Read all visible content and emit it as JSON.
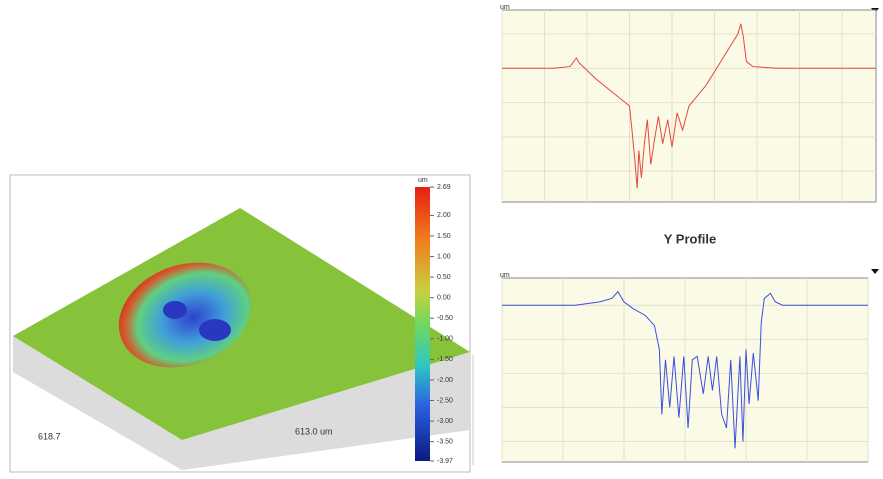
{
  "chart_data": [
    {
      "type": "surface",
      "length_label": "618.7",
      "width_label": "613.0 um",
      "colorbar_unit": "um",
      "clim": [
        -3.97,
        2.69
      ],
      "colorbar_ticks": [
        2.69,
        {
          "value": 2,
          "label": "2.00"
        },
        {
          "value": 1.5,
          "label": "1.50"
        },
        {
          "value": 1,
          "label": "1.00"
        },
        {
          "value": 0.5,
          "label": "0.50"
        },
        {
          "value": 0,
          "label": "0.00"
        },
        {
          "value": -0.5,
          "label": "-0.50"
        },
        {
          "value": -1,
          "label": "-1.00"
        },
        {
          "value": -1.5,
          "label": "-1.50"
        },
        {
          "value": -2,
          "label": "-2.00"
        },
        {
          "value": -2.5,
          "label": "-2.50"
        },
        {
          "value": -3,
          "label": "-3.00"
        },
        {
          "value": -3.5,
          "label": "-3.50"
        },
        -3.97
      ]
    },
    {
      "type": "line",
      "y_label": "um",
      "color": "#e8473c",
      "x": [
        0,
        60,
        120,
        160,
        175,
        182,
        195,
        220,
        250,
        280,
        300,
        305,
        312,
        318,
        322,
        328,
        335,
        342,
        350,
        360,
        368,
        378,
        390,
        400,
        412,
        425,
        440,
        460,
        480,
        500,
        520,
        540,
        555,
        562,
        568,
        575,
        590,
        650,
        720,
        800,
        880
      ],
      "values": [
        0,
        0,
        0,
        0.05,
        0.3,
        0.15,
        0,
        -0.3,
        -0.6,
        -0.9,
        -1.1,
        -1.7,
        -2.6,
        -3.5,
        -2.4,
        -3.2,
        -2.2,
        -1.5,
        -2.8,
        -2.0,
        -1.4,
        -2.2,
        -1.5,
        -2.3,
        -1.3,
        -1.8,
        -1.1,
        -0.8,
        -0.5,
        -0.1,
        0.3,
        0.7,
        1.0,
        1.3,
        0.9,
        0.2,
        0.05,
        0,
        0,
        0,
        0
      ]
    },
    {
      "type": "line",
      "title": "Y Profile",
      "y_label": "um",
      "color": "#3b4fe0",
      "x": [
        0,
        60,
        120,
        160,
        180,
        190,
        200,
        215,
        235,
        250,
        258,
        262,
        268,
        275,
        282,
        290,
        298,
        305,
        312,
        320,
        330,
        338,
        345,
        352,
        360,
        368,
        375,
        382,
        390,
        395,
        400,
        405,
        412,
        420,
        425,
        430,
        440,
        448,
        460,
        480,
        520,
        600
      ],
      "values": [
        0,
        0,
        0,
        0.1,
        0.2,
        0.4,
        0.1,
        -0.1,
        -0.3,
        -0.6,
        -1.3,
        -3.2,
        -1.6,
        -3.0,
        -1.5,
        -3.3,
        -1.5,
        -3.6,
        -1.6,
        -1.5,
        -2.6,
        -1.5,
        -2.5,
        -1.5,
        -3.2,
        -3.6,
        -1.6,
        -4.2,
        -1.5,
        -4.0,
        -1.3,
        -2.9,
        -1.4,
        -2.8,
        -0.5,
        0.2,
        0.35,
        0.1,
        0,
        0,
        0,
        0
      ]
    }
  ]
}
